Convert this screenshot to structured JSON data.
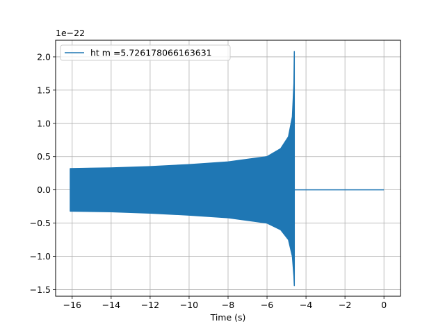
{
  "chart_data": {
    "type": "line",
    "title": "",
    "xlabel": "Time (s)",
    "ylabel": "",
    "y_offset_text": "1e−22",
    "xlim": [
      -16.85,
      0.85
    ],
    "ylim": [
      -1.6,
      2.25
    ],
    "x_ticks": [
      -16,
      -14,
      -12,
      -10,
      -8,
      -6,
      -4,
      -2,
      0
    ],
    "x_tick_labels": [
      "−16",
      "−14",
      "−12",
      "−10",
      "−8",
      "−6",
      "−4",
      "−2",
      "0"
    ],
    "y_ticks": [
      -1.5,
      -1.0,
      -0.5,
      0.0,
      0.5,
      1.0,
      1.5,
      2.0
    ],
    "y_tick_labels": [
      "−1.5",
      "−1.0",
      "−0.5",
      "0.0",
      "0.5",
      "1.0",
      "1.5",
      "2.0"
    ],
    "grid": true,
    "legend_position": "top-left",
    "series": [
      {
        "name": "ht m =5.726178066163631",
        "color": "#1f77b4",
        "envelope_upper": [
          {
            "x": -16.1,
            "y": 0.32
          },
          {
            "x": -14.0,
            "y": 0.33
          },
          {
            "x": -12.0,
            "y": 0.35
          },
          {
            "x": -10.0,
            "y": 0.38
          },
          {
            "x": -8.0,
            "y": 0.42
          },
          {
            "x": -6.0,
            "y": 0.5
          },
          {
            "x": -5.3,
            "y": 0.62
          },
          {
            "x": -4.9,
            "y": 0.8
          },
          {
            "x": -4.7,
            "y": 1.1
          },
          {
            "x": -4.62,
            "y": 1.6
          },
          {
            "x": -4.6,
            "y": 2.08
          }
        ],
        "envelope_lower": [
          {
            "x": -16.1,
            "y": -0.32
          },
          {
            "x": -14.0,
            "y": -0.33
          },
          {
            "x": -12.0,
            "y": -0.35
          },
          {
            "x": -10.0,
            "y": -0.38
          },
          {
            "x": -8.0,
            "y": -0.42
          },
          {
            "x": -6.0,
            "y": -0.5
          },
          {
            "x": -5.3,
            "y": -0.6
          },
          {
            "x": -4.9,
            "y": -0.75
          },
          {
            "x": -4.7,
            "y": -1.0
          },
          {
            "x": -4.62,
            "y": -1.3
          },
          {
            "x": -4.6,
            "y": -1.44
          }
        ],
        "tail": [
          {
            "x": -4.55,
            "y": 0.0
          },
          {
            "x": 0.0,
            "y": 0.0
          }
        ]
      }
    ]
  }
}
